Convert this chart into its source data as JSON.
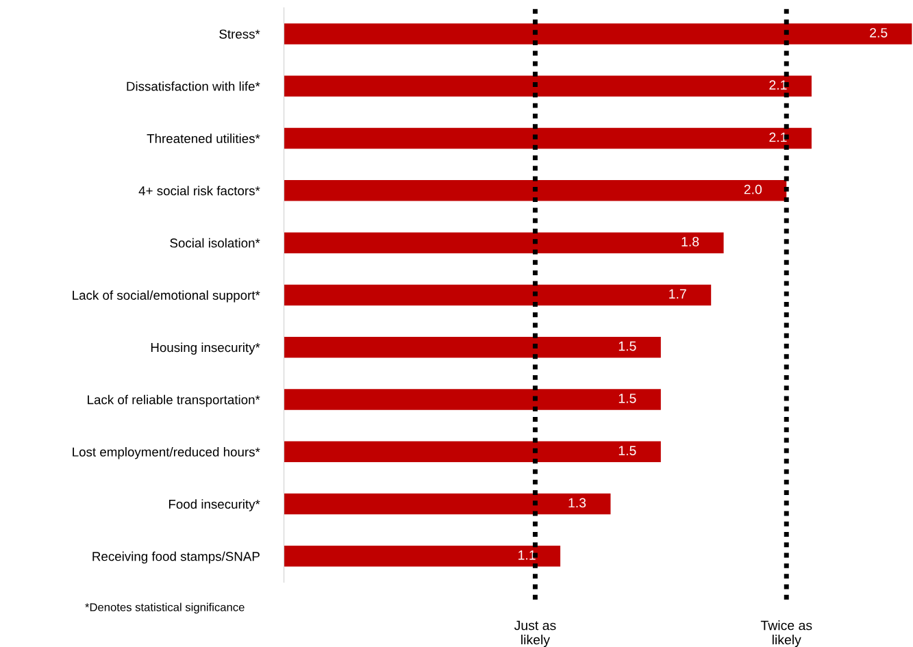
{
  "chart_data": {
    "type": "bar",
    "orientation": "horizontal",
    "categories": [
      "Stress*",
      "Dissatisfaction with life*",
      "Threatened utilities*",
      "4+ social risk factors*",
      "Social isolation*",
      "Lack of social/emotional support*",
      "Housing insecurity*",
      "Lack of reliable transportation*",
      "Lost employment/reduced hours*",
      "Food insecurity*",
      "Receiving food stamps/SNAP"
    ],
    "values": [
      2.5,
      2.1,
      2.1,
      2.0,
      1.75,
      1.7,
      1.5,
      1.5,
      1.5,
      1.3,
      1.1
    ],
    "value_labels": [
      "2.5",
      "2.1",
      "2.1",
      "2.0",
      "1.8",
      "1.7",
      "1.5",
      "1.5",
      "1.5",
      "1.3",
      "1.1"
    ],
    "color": "#c00000",
    "tick_labels": "y",
    "grid": false,
    "ref_lines": [
      {
        "axis": "x",
        "value": 1,
        "label": "Just as\nlikely",
        "color": "#000000",
        "line_style": "dotted"
      },
      {
        "axis": "x",
        "value": 2,
        "label": "Twice as\nlikely",
        "color": "#000000",
        "line_style": "dotted"
      }
    ],
    "annotations": [
      "*Denotes statistical significance"
    ]
  }
}
